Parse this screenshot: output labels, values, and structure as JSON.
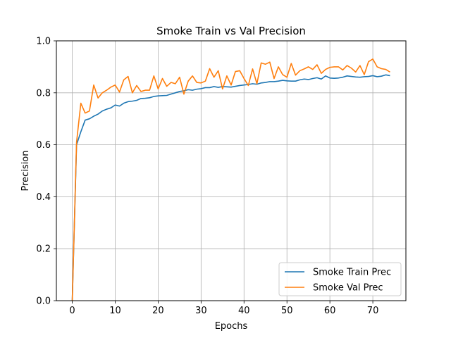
{
  "chart_data": {
    "type": "line",
    "title": "Smoke Train vs Val Precision",
    "xlabel": "Epochs",
    "ylabel": "Precision",
    "xlim": [
      -3.7,
      77.7
    ],
    "ylim": [
      0.0,
      1.0
    ],
    "xticks": [
      0,
      10,
      20,
      30,
      40,
      50,
      60,
      70
    ],
    "yticks": [
      0.0,
      0.2,
      0.4,
      0.6,
      0.8,
      1.0
    ],
    "ytick_labels": [
      "0.0",
      "0.2",
      "0.4",
      "0.6",
      "0.8",
      "1.0"
    ],
    "grid": true,
    "legend_position": "lower-right",
    "x": [
      0,
      1,
      2,
      3,
      4,
      5,
      6,
      7,
      8,
      9,
      10,
      11,
      12,
      13,
      14,
      15,
      16,
      17,
      18,
      19,
      20,
      21,
      22,
      23,
      24,
      25,
      26,
      27,
      28,
      29,
      30,
      31,
      32,
      33,
      34,
      35,
      36,
      37,
      38,
      39,
      40,
      41,
      42,
      43,
      44,
      45,
      46,
      47,
      48,
      49,
      50,
      51,
      52,
      53,
      54,
      55,
      56,
      57,
      58,
      59,
      60,
      61,
      62,
      63,
      64,
      65,
      66,
      67,
      68,
      69,
      70,
      71,
      72,
      73,
      74
    ],
    "series": [
      {
        "name": "Smoke Train Prec",
        "color": "#1f77b4",
        "values": [
          0.0,
          0.6,
          0.65,
          0.695,
          0.7,
          0.71,
          0.718,
          0.73,
          0.737,
          0.742,
          0.753,
          0.749,
          0.76,
          0.766,
          0.768,
          0.771,
          0.778,
          0.779,
          0.781,
          0.786,
          0.788,
          0.789,
          0.79,
          0.795,
          0.8,
          0.805,
          0.808,
          0.812,
          0.81,
          0.814,
          0.816,
          0.82,
          0.82,
          0.824,
          0.821,
          0.824,
          0.823,
          0.822,
          0.825,
          0.828,
          0.83,
          0.832,
          0.835,
          0.833,
          0.838,
          0.84,
          0.843,
          0.843,
          0.845,
          0.848,
          0.846,
          0.845,
          0.845,
          0.85,
          0.853,
          0.851,
          0.855,
          0.858,
          0.853,
          0.865,
          0.857,
          0.856,
          0.857,
          0.86,
          0.865,
          0.863,
          0.861,
          0.86,
          0.862,
          0.863,
          0.866,
          0.862,
          0.864,
          0.869,
          0.866
        ]
      },
      {
        "name": "Smoke Val Prec",
        "color": "#ff7f0e",
        "values": [
          0.0,
          0.61,
          0.76,
          0.722,
          0.73,
          0.83,
          0.78,
          0.8,
          0.81,
          0.822,
          0.83,
          0.803,
          0.85,
          0.863,
          0.8,
          0.828,
          0.805,
          0.81,
          0.81,
          0.865,
          0.815,
          0.855,
          0.825,
          0.84,
          0.835,
          0.86,
          0.795,
          0.845,
          0.865,
          0.84,
          0.838,
          0.845,
          0.893,
          0.86,
          0.885,
          0.815,
          0.865,
          0.83,
          0.882,
          0.885,
          0.855,
          0.828,
          0.892,
          0.835,
          0.915,
          0.91,
          0.918,
          0.855,
          0.9,
          0.87,
          0.86,
          0.913,
          0.868,
          0.885,
          0.892,
          0.9,
          0.89,
          0.908,
          0.875,
          0.89,
          0.898,
          0.9,
          0.9,
          0.888,
          0.905,
          0.895,
          0.88,
          0.905,
          0.87,
          0.92,
          0.93,
          0.9,
          0.893,
          0.89,
          0.88
        ]
      }
    ]
  }
}
